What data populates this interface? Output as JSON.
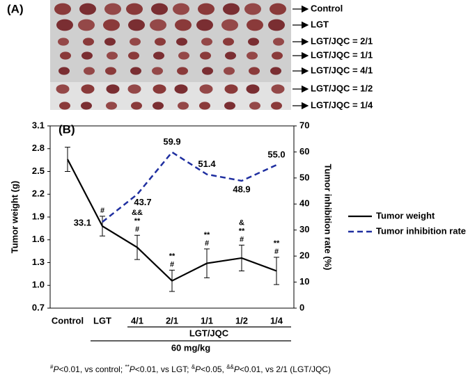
{
  "panel_a": {
    "label": "(A)",
    "rows": [
      "Control",
      "LGT",
      "LGT/JQC = 2/1",
      "LGT/JQC = 1/1",
      "LGT/JQC = 4/1",
      "LGT/JQC = 1/2",
      "LGT/JQC = 1/4"
    ]
  },
  "chart_data": {
    "type": "line",
    "panel_label": "(B)",
    "categories": [
      "Control",
      "LGT",
      "4/1",
      "2/1",
      "1/1",
      "1/2",
      "1/4"
    ],
    "ylabel": "Tumor weight (g)",
    "y2label": "Tumor inhibition rate (%)",
    "ylim": [
      0.7,
      3.1
    ],
    "yticks": [
      0.7,
      {
        "value": 1,
        "label": "1.0"
      },
      1.3,
      1.6,
      1.9,
      2.2,
      2.5,
      2.8,
      3.1
    ],
    "y2lim": [
      0,
      70
    ],
    "y2ticks": [
      0,
      10,
      20,
      30,
      40,
      50,
      60,
      70
    ],
    "legend": "right",
    "series": [
      {
        "name": "Tumor weight",
        "color": "#000000",
        "dash": false,
        "values": [
          2.66,
          1.78,
          1.5,
          1.06,
          1.29,
          1.36,
          1.19
        ],
        "errors": [
          0.16,
          0.13,
          0.16,
          0.14,
          0.19,
          0.17,
          0.18
        ]
      },
      {
        "name": "Tumor inhibition rate",
        "color": "#1f2fa0",
        "dash": true,
        "axis": "y2",
        "values": [
          null,
          33.1,
          43.7,
          59.9,
          51.4,
          48.9,
          55.0
        ],
        "value_labels": [
          null,
          "33.1",
          "43.7",
          "59.9",
          "51.4",
          "48.9",
          "55.0"
        ]
      }
    ],
    "annotations": [
      null,
      [
        "#"
      ],
      [
        "&&",
        "**",
        "#"
      ],
      [
        "**",
        "#"
      ],
      [
        "**",
        "#"
      ],
      [
        "&",
        "**",
        "#"
      ],
      [
        "**",
        "#"
      ]
    ],
    "group_labels": [
      "LGT/JQC",
      "60 mg/kg"
    ],
    "footnote": [
      "#",
      "P",
      "<0.01, vs control; ",
      "**",
      "P",
      "<0.01, vs LGT; ",
      "&",
      "P",
      "<0.05, ",
      "&&",
      "P",
      "<0.01, vs 2/1 (LGT/JQC)"
    ]
  }
}
